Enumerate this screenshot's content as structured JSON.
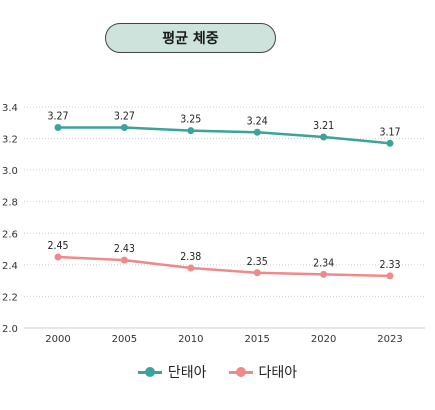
{
  "chart_data": {
    "type": "line",
    "title": "평균 체중",
    "categories": [
      "2000",
      "2005",
      "2010",
      "2015",
      "2020",
      "2023"
    ],
    "ylim": [
      2.0,
      3.4
    ],
    "yticks": [
      "2.0",
      "2.2",
      "2.4",
      "2.6",
      "2.8",
      "3.0",
      "3.2",
      "3.4"
    ],
    "grid": true,
    "legend_position": "bottom",
    "series": [
      {
        "name": "단태아",
        "color": "#3aa39a",
        "values": [
          3.27,
          3.27,
          3.25,
          3.24,
          3.21,
          3.17
        ],
        "labels": [
          "3.27",
          "3.27",
          "3.25",
          "3.24",
          "3.21",
          "3.17"
        ]
      },
      {
        "name": "다태아",
        "color": "#ee8a8a",
        "values": [
          2.45,
          2.43,
          2.38,
          2.35,
          2.34,
          2.33
        ],
        "labels": [
          "2.45",
          "2.43",
          "2.38",
          "2.35",
          "2.34",
          "2.33"
        ]
      }
    ]
  }
}
